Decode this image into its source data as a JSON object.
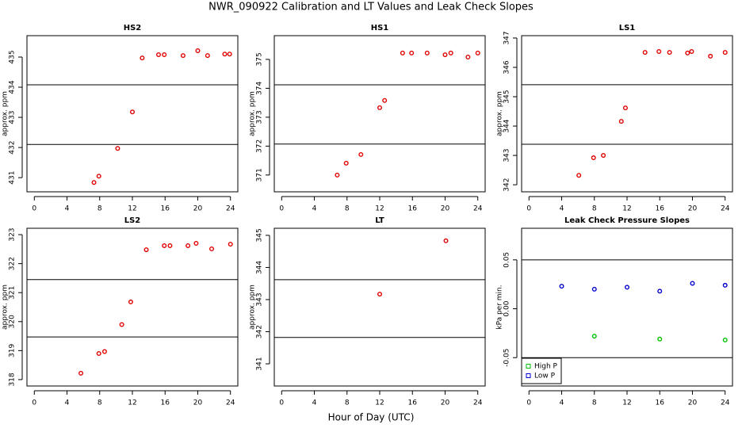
{
  "title": "NWR_090922  Calibration and LT Values and Leak Check Slopes",
  "xlabel": "Hour of Day (UTC)",
  "chart_data": [
    {
      "type": "scatter",
      "title": "HS2",
      "ylabel": "approx. ppm",
      "xlim": [
        -0.9,
        24.9
      ],
      "xticks": [
        0,
        4,
        8,
        12,
        16,
        20,
        24
      ],
      "ylim": [
        430.53,
        435.71
      ],
      "yticks": [
        431,
        432,
        433,
        434,
        435
      ],
      "hlines": [
        434.08,
        432.1
      ],
      "series": [
        {
          "color": "#e00000",
          "x": [
            7.3,
            7.9,
            10.2,
            12.0,
            13.2,
            15.2,
            15.9,
            18.2,
            20.0,
            21.2,
            23.3,
            23.9
          ],
          "values": [
            430.84,
            431.05,
            431.97,
            433.18,
            434.97,
            435.08,
            435.08,
            435.05,
            435.21,
            435.05,
            435.1,
            435.1
          ]
        }
      ]
    },
    {
      "type": "scatter",
      "title": "HS1",
      "ylabel": "approx. ppm",
      "xlim": [
        -0.9,
        24.9
      ],
      "xticks": [
        0,
        4,
        8,
        12,
        16,
        20,
        24
      ],
      "ylim": [
        370.42,
        375.82
      ],
      "yticks": [
        371,
        372,
        373,
        374,
        375
      ],
      "hlines": [
        374.12,
        372.07
      ],
      "series": [
        {
          "color": "#e00000",
          "x": [
            6.8,
            7.9,
            9.7,
            12.0,
            12.6,
            14.8,
            15.9,
            17.8,
            20.0,
            20.7,
            22.8,
            24.0
          ],
          "values": [
            371.0,
            371.41,
            371.71,
            373.33,
            373.58,
            375.22,
            375.22,
            375.22,
            375.16,
            375.22,
            375.08,
            375.22
          ]
        }
      ]
    },
    {
      "type": "scatter",
      "title": "LS1",
      "ylabel": "approx. ppm",
      "xlim": [
        -0.9,
        24.9
      ],
      "xticks": [
        0,
        4,
        8,
        12,
        16,
        20,
        24
      ],
      "ylim": [
        341.76,
        347.08
      ],
      "yticks": [
        342,
        343,
        344,
        345,
        346,
        347
      ],
      "hlines": [
        345.41,
        343.38
      ],
      "series": [
        {
          "color": "#e00000",
          "x": [
            6.1,
            7.9,
            9.1,
            11.3,
            11.8,
            14.2,
            15.9,
            17.2,
            19.4,
            19.9,
            22.2,
            24.0
          ],
          "values": [
            342.32,
            342.92,
            343.0,
            344.16,
            344.62,
            346.51,
            346.54,
            346.51,
            346.49,
            346.54,
            346.38,
            346.51
          ]
        }
      ]
    },
    {
      "type": "scatter",
      "title": "LS2",
      "ylabel": "approx. ppm",
      "xlim": [
        -0.9,
        24.9
      ],
      "xticks": [
        0,
        4,
        8,
        12,
        16,
        20,
        24
      ],
      "ylim": [
        317.78,
        323.22
      ],
      "yticks": [
        318,
        319,
        320,
        321,
        322,
        323
      ],
      "hlines": [
        321.45,
        319.47
      ],
      "series": [
        {
          "color": "#e00000",
          "x": [
            5.7,
            7.9,
            8.6,
            10.7,
            11.8,
            13.7,
            15.9,
            16.6,
            18.8,
            19.8,
            21.7,
            24.0
          ],
          "values": [
            318.22,
            318.9,
            318.97,
            319.9,
            320.68,
            322.48,
            322.62,
            322.62,
            322.62,
            322.7,
            322.51,
            322.67
          ]
        }
      ]
    },
    {
      "type": "scatter",
      "title": "LT",
      "ylabel": "approx. ppm",
      "xlim": [
        -0.9,
        24.9
      ],
      "xticks": [
        0,
        4,
        8,
        12,
        16,
        20,
        24
      ],
      "ylim": [
        340.31,
        345.22
      ],
      "yticks": [
        341,
        342,
        343,
        344,
        345
      ],
      "hlines": [
        343.62,
        341.82
      ],
      "series": [
        {
          "color": "#e00000",
          "x": [
            12.0,
            20.1
          ],
          "values": [
            343.17,
            344.83
          ]
        }
      ]
    },
    {
      "type": "scatter",
      "title": "Leak Check Pressure Slopes",
      "ylabel": "kPa per min.",
      "xlim": [
        -0.9,
        24.9
      ],
      "xticks": [
        0,
        4,
        8,
        12,
        16,
        20,
        24
      ],
      "ylim": [
        -0.079,
        0.0823
      ],
      "yticks": [
        0.05,
        {
          "value": 0,
          "label": "0.00"
        },
        -0.05
      ],
      "hlines": [
        0.05,
        -0.05
      ],
      "legend": "bottomleft",
      "series": [
        {
          "name": "High P",
          "color": "#00c000",
          "x": [
            8,
            16,
            24
          ],
          "values": [
            -0.028,
            -0.031,
            -0.032
          ]
        },
        {
          "name": "Low P",
          "color": "#0000d0",
          "x": [
            4,
            8,
            12,
            16,
            20,
            24
          ],
          "values": [
            0.023,
            0.02,
            0.022,
            0.018,
            0.026,
            0.024
          ]
        }
      ]
    }
  ]
}
